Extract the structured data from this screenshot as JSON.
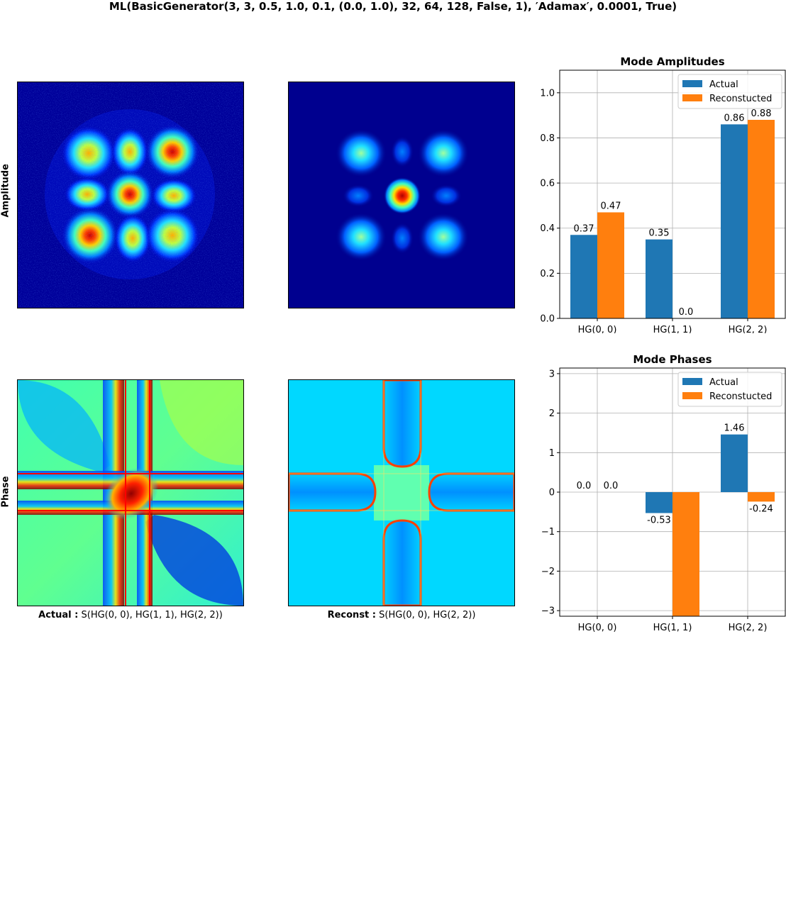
{
  "figure": {
    "suptitle": "ML(BasicGenerator(3, 3, 0.5, 1.0, 0.1, (0.0, 1.0), 32, 64, 128, False, 1), ′Adamax′, 0.0001, True)",
    "row_labels": {
      "amplitude": "Amplitude",
      "phase": "Phase"
    },
    "captions": {
      "actual_prefix": "Actual :",
      "actual_text": "S(HG(0, 0), HG(1, 1), HG(2, 2))",
      "reconst_prefix": "Reconst :",
      "reconst_text": "S(HG(0, 0), HG(2, 2))"
    },
    "colors": {
      "actual": "#1f77b4",
      "reconstructed": "#ff7f0e",
      "grid": "#b0b0b0",
      "colormap": "jet"
    }
  },
  "chart_data": [
    {
      "type": "bar",
      "title": "Mode Amplitudes",
      "categories": [
        "HG(0, 0)",
        "HG(1, 1)",
        "HG(2, 2)"
      ],
      "series": [
        {
          "name": "Actual",
          "values": [
            0.37,
            0.35,
            0.86
          ],
          "labels": [
            "0.37",
            "0.35",
            "0.86"
          ]
        },
        {
          "name": "Reconstucted",
          "values": [
            0.47,
            0.0,
            0.88
          ],
          "labels": [
            "0.47",
            "0.0",
            "0.88"
          ]
        }
      ],
      "ylim": [
        0,
        1.1
      ],
      "yticks": [
        0.0,
        0.2,
        0.4,
        0.6,
        0.8,
        1.0
      ],
      "ytick_labels": [
        "0.0",
        "0.2",
        "0.4",
        "0.6",
        "0.8",
        "1.0"
      ],
      "grid": true,
      "legend": "top-right"
    },
    {
      "type": "bar",
      "title": "Mode Phases",
      "categories": [
        "HG(0, 0)",
        "HG(1, 1)",
        "HG(2, 2)"
      ],
      "series": [
        {
          "name": "Actual",
          "values": [
            0.0,
            -0.53,
            1.46
          ],
          "labels": [
            "0.0",
            "-0.53",
            "1.46"
          ]
        },
        {
          "name": "Reconstucted",
          "values": [
            0.0,
            -3.14,
            -0.24
          ],
          "labels": [
            "0.0",
            "",
            "-0.24"
          ]
        }
      ],
      "ylim": [
        -3.14159,
        3.14159
      ],
      "yticks": [
        -3,
        -2,
        -1,
        0,
        1,
        2,
        3
      ],
      "ytick_labels": [
        "−3",
        "−2",
        "−1",
        "0",
        "1",
        "2",
        "3"
      ],
      "grid": true,
      "legend": "top-right"
    }
  ]
}
